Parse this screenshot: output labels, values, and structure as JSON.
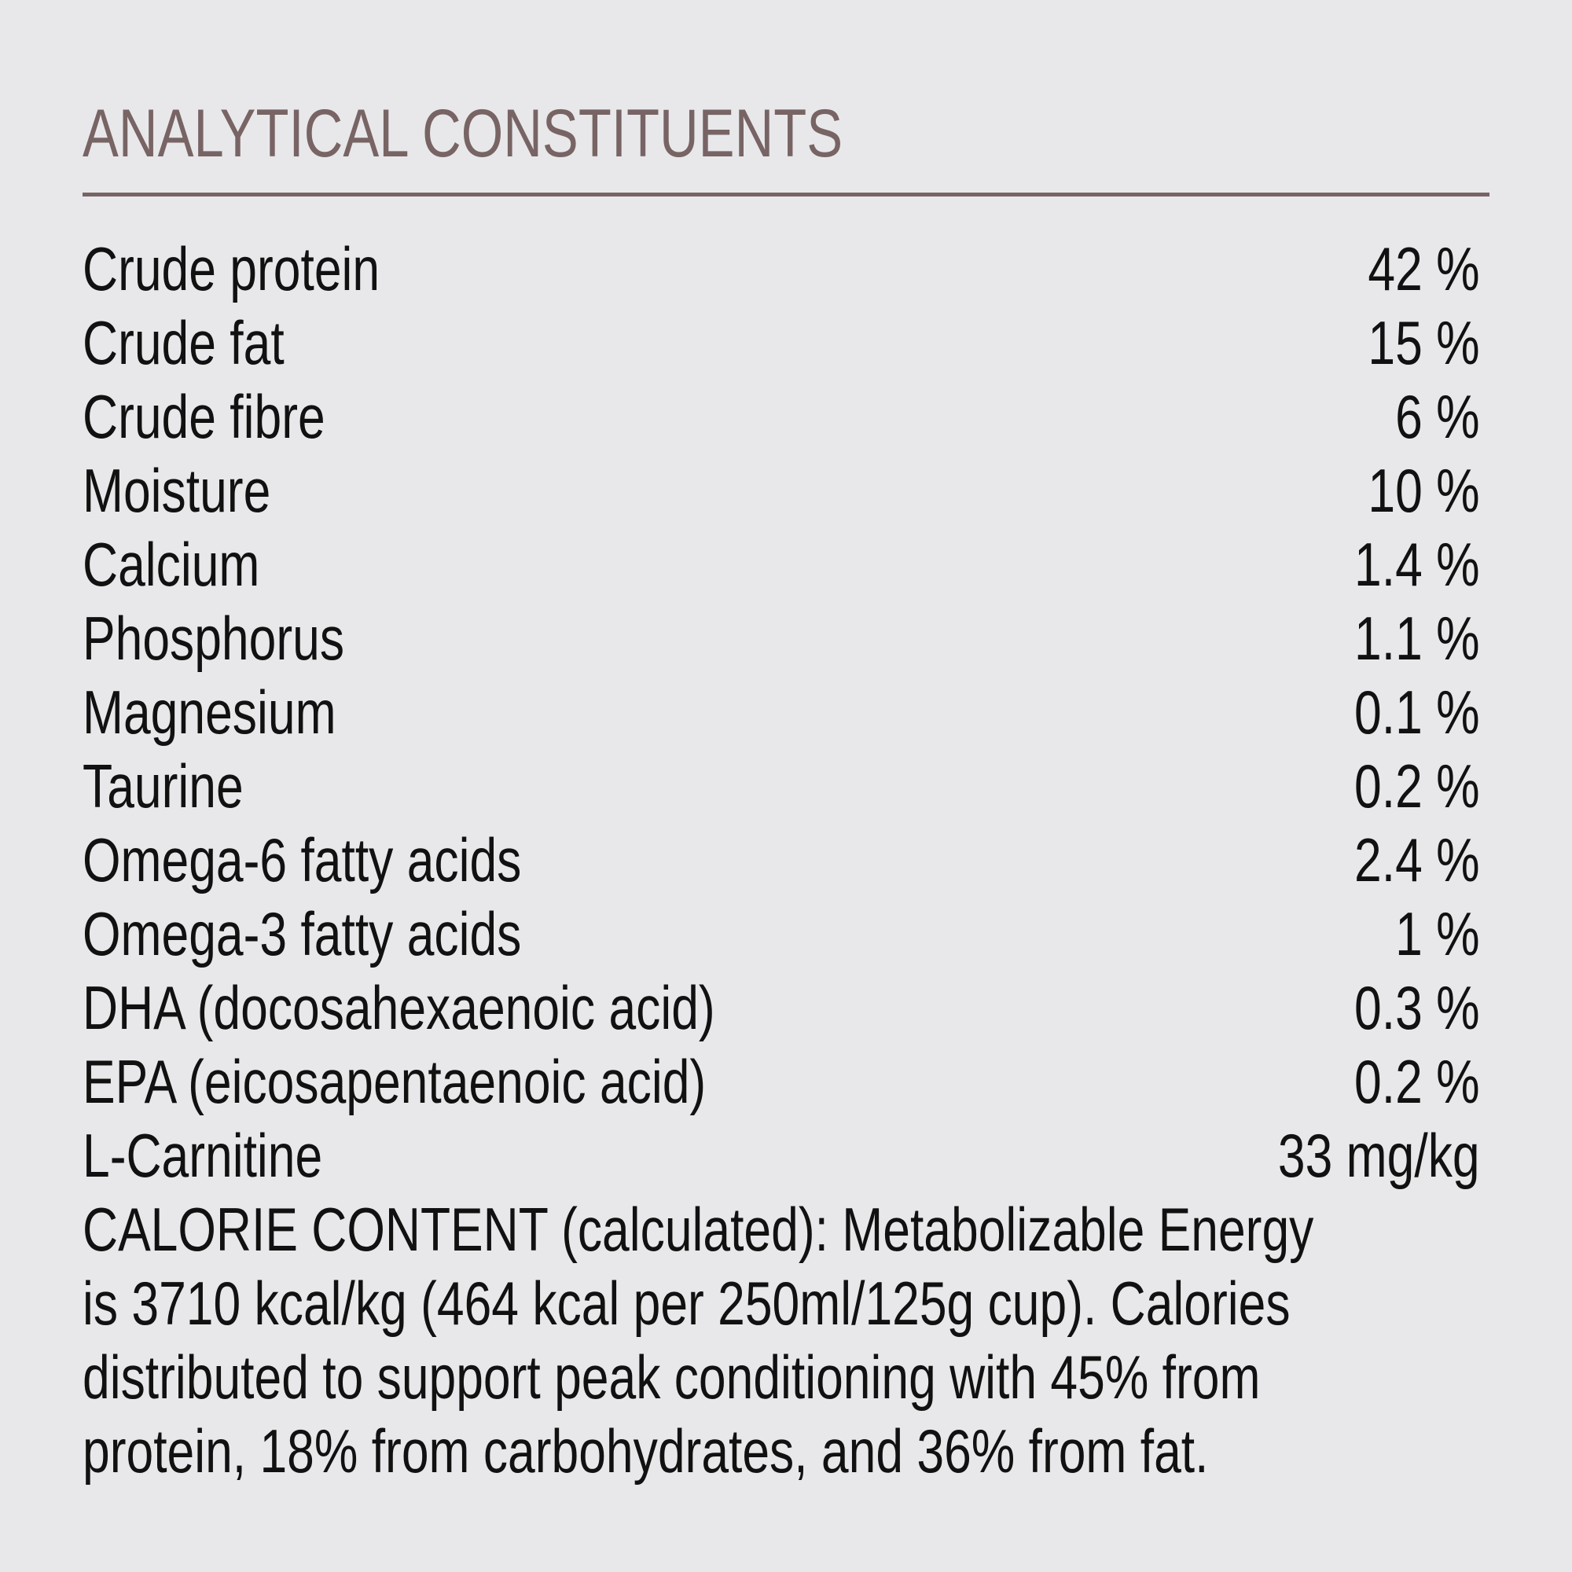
{
  "title": "ANALYTICAL CONSTITUENTS",
  "colors": {
    "background": "#e8e8ea",
    "title": "#786464",
    "text": "#111111"
  },
  "constituents": [
    {
      "name": "Crude protein",
      "value": "42 %"
    },
    {
      "name": "Crude fat",
      "value": "15 %"
    },
    {
      "name": "Crude fibre",
      "value": "6 %"
    },
    {
      "name": "Moisture",
      "value": "10 %"
    },
    {
      "name": "Calcium",
      "value": "1.4 %"
    },
    {
      "name": "Phosphorus",
      "value": "1.1 %"
    },
    {
      "name": "Magnesium",
      "value": "0.1 %"
    },
    {
      "name": "Taurine",
      "value": "0.2 %"
    },
    {
      "name": "Omega-6 fatty acids",
      "value": "2.4 %"
    },
    {
      "name": "Omega-3 fatty acids",
      "value": "1 %"
    },
    {
      "name": "DHA (docosahexaenoic acid)",
      "value": "0.3 %"
    },
    {
      "name": "EPA (eicosapentaenoic acid)",
      "value": "0.2 %"
    },
    {
      "name": "L-Carnitine",
      "value": "33 mg/kg"
    }
  ],
  "calorie_content": {
    "lines": [
      "CALORIE CONTENT (calculated): Metabolizable Energy",
      "is 3710 kcal/kg (464 kcal per 250ml/125g cup). Calories",
      "distributed to support peak conditioning with 45% from",
      "protein, 18% from carbohydrates, and 36% from fat."
    ]
  }
}
